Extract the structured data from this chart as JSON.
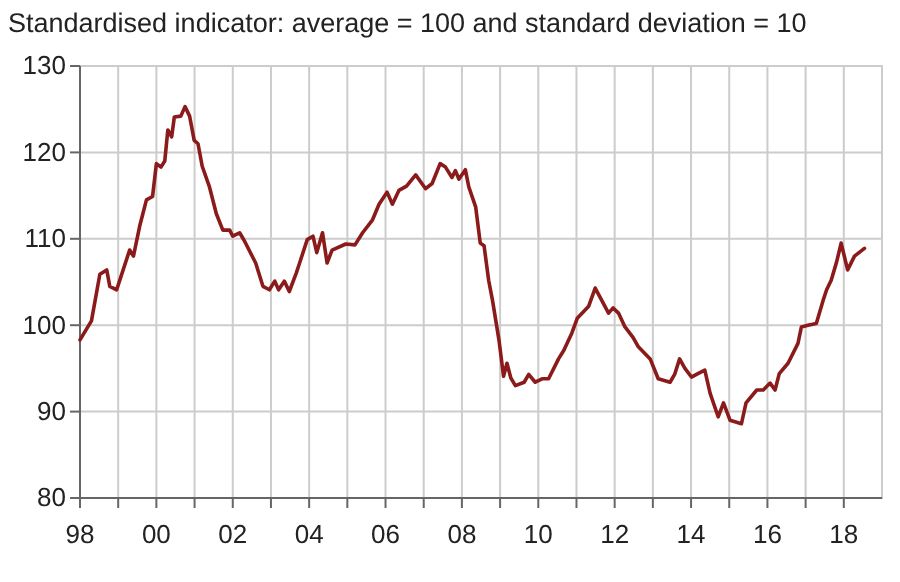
{
  "chart_data": {
    "type": "line",
    "title": "Standardised indicator: average = 100 and standard deviation = 10",
    "x": [
      1998.0,
      1998.3,
      1998.52,
      1998.7,
      1998.78,
      1998.96,
      1999.13,
      1999.3,
      1999.4,
      1999.57,
      1999.74,
      1999.9,
      2000.0,
      2000.12,
      2000.22,
      2000.3,
      2000.4,
      2000.47,
      2000.64,
      2000.75,
      2000.87,
      2000.99,
      2001.09,
      2001.2,
      2001.39,
      2001.57,
      2001.74,
      2001.92,
      2002.0,
      2002.18,
      2002.3,
      2002.6,
      2002.79,
      2002.96,
      2003.1,
      2003.2,
      2003.35,
      2003.48,
      2003.66,
      2003.75,
      2003.95,
      2004.1,
      2004.2,
      2004.35,
      2004.47,
      2004.6,
      2004.96,
      2005.2,
      2005.4,
      2005.66,
      2005.83,
      2006.04,
      2006.18,
      2006.35,
      2006.55,
      2006.79,
      2007.05,
      2007.22,
      2007.43,
      2007.57,
      2007.74,
      2007.83,
      2007.92,
      2008.09,
      2008.18,
      2008.36,
      2008.48,
      2008.58,
      2008.7,
      2008.8,
      2008.97,
      2009.09,
      2009.18,
      2009.28,
      2009.4,
      2009.63,
      2009.75,
      2009.92,
      2010.1,
      2010.27,
      2010.53,
      2010.67,
      2010.88,
      2011.02,
      2011.32,
      2011.49,
      2011.84,
      2011.96,
      2012.1,
      2012.27,
      2012.48,
      2012.62,
      2012.93,
      2013.14,
      2013.45,
      2013.57,
      2013.7,
      2013.84,
      2014.01,
      2014.18,
      2014.36,
      2014.5,
      2014.71,
      2014.85,
      2015.02,
      2015.32,
      2015.44,
      2015.72,
      2015.89,
      2016.07,
      2016.2,
      2016.31,
      2016.54,
      2016.8,
      2016.89,
      2017.06,
      2017.28,
      2017.46,
      2017.55,
      2017.67,
      2017.81,
      2017.93,
      2018.1,
      2018.28,
      2018.54
    ],
    "series": [
      {
        "color": "#8b1a1a",
        "values": [
          98.3,
          100.5,
          105.9,
          106.4,
          104.5,
          104.1,
          106.4,
          108.7,
          108,
          111.6,
          114.5,
          114.9,
          118.7,
          118.3,
          119,
          122.6,
          121.8,
          124.1,
          124.2,
          125.3,
          124.2,
          121.4,
          121,
          118.4,
          116,
          112.9,
          111,
          111,
          110.3,
          110.7,
          109.8,
          107.2,
          104.5,
          104.1,
          105.1,
          104.1,
          105.1,
          103.9,
          106,
          107.2,
          109.9,
          110.3,
          108.4,
          110.7,
          107.2,
          108.7,
          109.4,
          109.3,
          110.7,
          112.2,
          114,
          115.4,
          114,
          115.6,
          116.1,
          117.4,
          115.8,
          116.4,
          118.7,
          118.3,
          117.1,
          117.9,
          116.9,
          118,
          116,
          113.7,
          109.5,
          109.2,
          105.2,
          102.9,
          98.3,
          94.1,
          95.6,
          93.9,
          93,
          93.4,
          94.3,
          93.4,
          93.8,
          93.8,
          96.1,
          97.1,
          99.1,
          100.8,
          102.2,
          104.3,
          101.4,
          102,
          101.4,
          99.8,
          98.6,
          97.5,
          96.1,
          93.8,
          93.4,
          94.3,
          96.1,
          95,
          94,
          94.4,
          94.8,
          92.1,
          89.4,
          91,
          89,
          88.6,
          91,
          92.5,
          92.5,
          93.3,
          92.5,
          94.4,
          95.6,
          97.9,
          99.8,
          100,
          100.2,
          102.9,
          104.1,
          105.2,
          107.3,
          109.5,
          106.4,
          108,
          108.9
        ]
      }
    ],
    "xlim": [
      1998,
      2019
    ],
    "xticks": [
      {
        "value": 1998,
        "label": "98"
      },
      {
        "value": 1999,
        "label": null
      },
      {
        "value": 2000,
        "label": "00"
      },
      {
        "value": 2001,
        "label": null
      },
      {
        "value": 2002,
        "label": "02"
      },
      {
        "value": 2003,
        "label": null
      },
      {
        "value": 2004,
        "label": "04"
      },
      {
        "value": 2005,
        "label": null
      },
      {
        "value": 2006,
        "label": "06"
      },
      {
        "value": 2007,
        "label": null
      },
      {
        "value": 2008,
        "label": "08"
      },
      {
        "value": 2009,
        "label": null
      },
      {
        "value": 2010,
        "label": "10"
      },
      {
        "value": 2011,
        "label": null
      },
      {
        "value": 2012,
        "label": "12"
      },
      {
        "value": 2013,
        "label": null
      },
      {
        "value": 2014,
        "label": "14"
      },
      {
        "value": 2015,
        "label": null
      },
      {
        "value": 2016,
        "label": "16"
      },
      {
        "value": 2017,
        "label": null
      },
      {
        "value": 2018,
        "label": "18"
      }
    ],
    "ylim": [
      80,
      130
    ],
    "yticks": [
      80,
      90,
      100,
      110,
      120,
      130
    ],
    "grid": true
  }
}
